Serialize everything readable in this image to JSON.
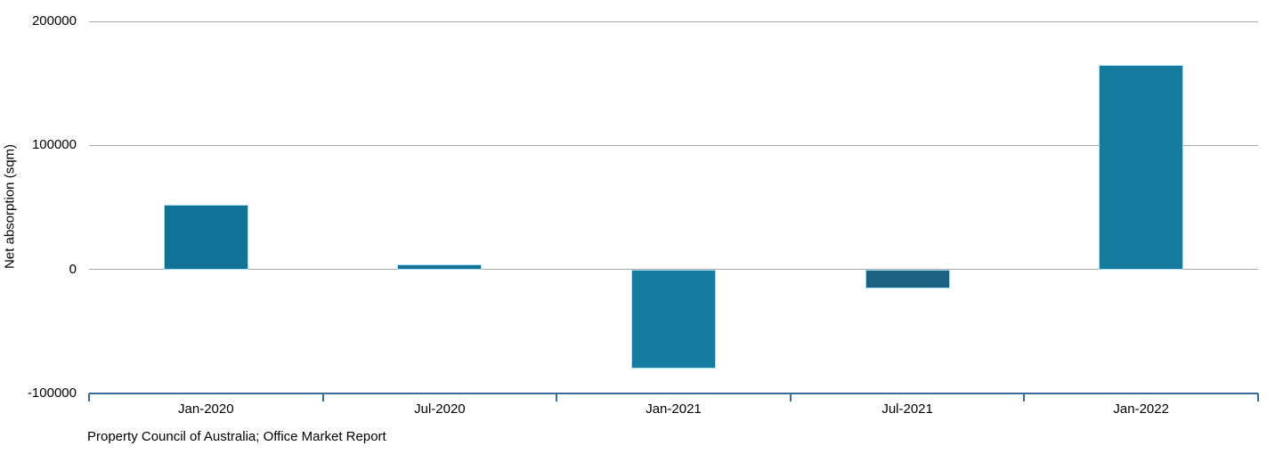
{
  "chart_data": {
    "type": "bar",
    "title": "",
    "xlabel": "",
    "ylabel": "Net absorption (sqm)",
    "categories": [
      "Jan-2020",
      "Jul-2020",
      "Jan-2021",
      "Jul-2021",
      "Jan-2022"
    ],
    "values": [
      52000,
      4000,
      -80000,
      -15000,
      165000
    ],
    "ylim": [
      -100000,
      200000
    ],
    "yticks": [
      -100000,
      0,
      100000,
      200000
    ],
    "grid": true,
    "legend": false,
    "source_note": "Property Council of Australia; Office Market Report",
    "colors": {
      "bar_fills": [
        "#107296",
        "#15739a",
        "#157ba1",
        "#1a6183",
        "#147a9e"
      ],
      "bar_border": "#aadded",
      "axis_line": "#3a6b99",
      "gridline": "#a9a9a9",
      "text": "#000000"
    }
  }
}
